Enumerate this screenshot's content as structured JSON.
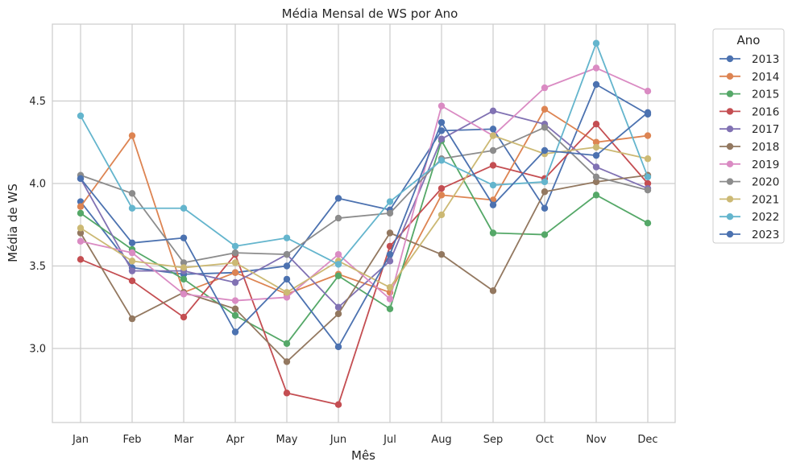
{
  "chart_data": {
    "type": "line",
    "title": "Média Mensal de WS por Ano",
    "xlabel": "Mês",
    "ylabel": "Média de WS",
    "categories": [
      "Jan",
      "Feb",
      "Mar",
      "Apr",
      "May",
      "Jun",
      "Jul",
      "Aug",
      "Sep",
      "Oct",
      "Nov",
      "Dec"
    ],
    "ylim": [
      2.53,
      4.95
    ],
    "yticks": [
      "3.0",
      "3.5",
      "4.0",
      "4.5"
    ],
    "grid": true,
    "legend": {
      "title": "Ano",
      "placement": "outside-right"
    },
    "series": [
      {
        "name": "2013",
        "color": "#4c72b0",
        "values": [
          3.89,
          3.49,
          3.45,
          3.46,
          3.5,
          3.91,
          3.84,
          4.32,
          4.33,
          3.85,
          4.6,
          4.42
        ]
      },
      {
        "name": "2014",
        "color": "#dd8452",
        "values": [
          3.86,
          4.29,
          3.34,
          3.46,
          3.33,
          3.45,
          3.34,
          3.93,
          3.9,
          4.45,
          4.25,
          4.29
        ]
      },
      {
        "name": "2015",
        "color": "#55a868",
        "values": [
          3.82,
          3.6,
          3.42,
          3.2,
          3.03,
          3.44,
          3.24,
          4.26,
          3.7,
          3.69,
          3.93,
          3.76
        ]
      },
      {
        "name": "2016",
        "color": "#c44e52",
        "values": [
          3.54,
          3.41,
          3.19,
          3.57,
          2.73,
          2.66,
          3.62,
          3.97,
          4.11,
          4.03,
          4.36,
          4.0
        ]
      },
      {
        "name": "2017",
        "color": "#8172b3",
        "values": [
          4.03,
          3.47,
          3.47,
          3.4,
          3.57,
          3.25,
          3.53,
          4.27,
          4.44,
          4.36,
          4.1,
          3.97
        ]
      },
      {
        "name": "2018",
        "color": "#937860",
        "values": [
          3.7,
          3.18,
          3.34,
          3.24,
          2.92,
          3.21,
          3.7,
          3.57,
          3.35,
          3.95,
          4.01,
          4.05
        ]
      },
      {
        "name": "2019",
        "color": "#da8bc3",
        "values": [
          3.65,
          3.58,
          3.33,
          3.29,
          3.31,
          3.57,
          3.3,
          4.47,
          4.29,
          4.58,
          4.7,
          4.56
        ]
      },
      {
        "name": "2020",
        "color": "#8c8c8c",
        "values": [
          4.05,
          3.94,
          3.52,
          3.58,
          3.57,
          3.79,
          3.82,
          4.15,
          4.2,
          4.34,
          4.04,
          3.96
        ]
      },
      {
        "name": "2021",
        "color": "#ccb974",
        "values": [
          3.73,
          3.53,
          3.49,
          3.52,
          3.34,
          3.53,
          3.37,
          3.81,
          4.29,
          4.18,
          4.22,
          4.15
        ]
      },
      {
        "name": "2022",
        "color": "#64b5cd",
        "values": [
          4.41,
          3.85,
          3.85,
          3.62,
          3.67,
          3.51,
          3.89,
          4.14,
          3.99,
          4.01,
          4.85,
          4.04
        ]
      },
      {
        "name": "2023",
        "color": "#4c72b0",
        "values": [
          4.03,
          3.64,
          3.67,
          3.1,
          3.42,
          3.01,
          3.57,
          4.37,
          3.87,
          4.2,
          4.17,
          4.43
        ]
      }
    ]
  }
}
